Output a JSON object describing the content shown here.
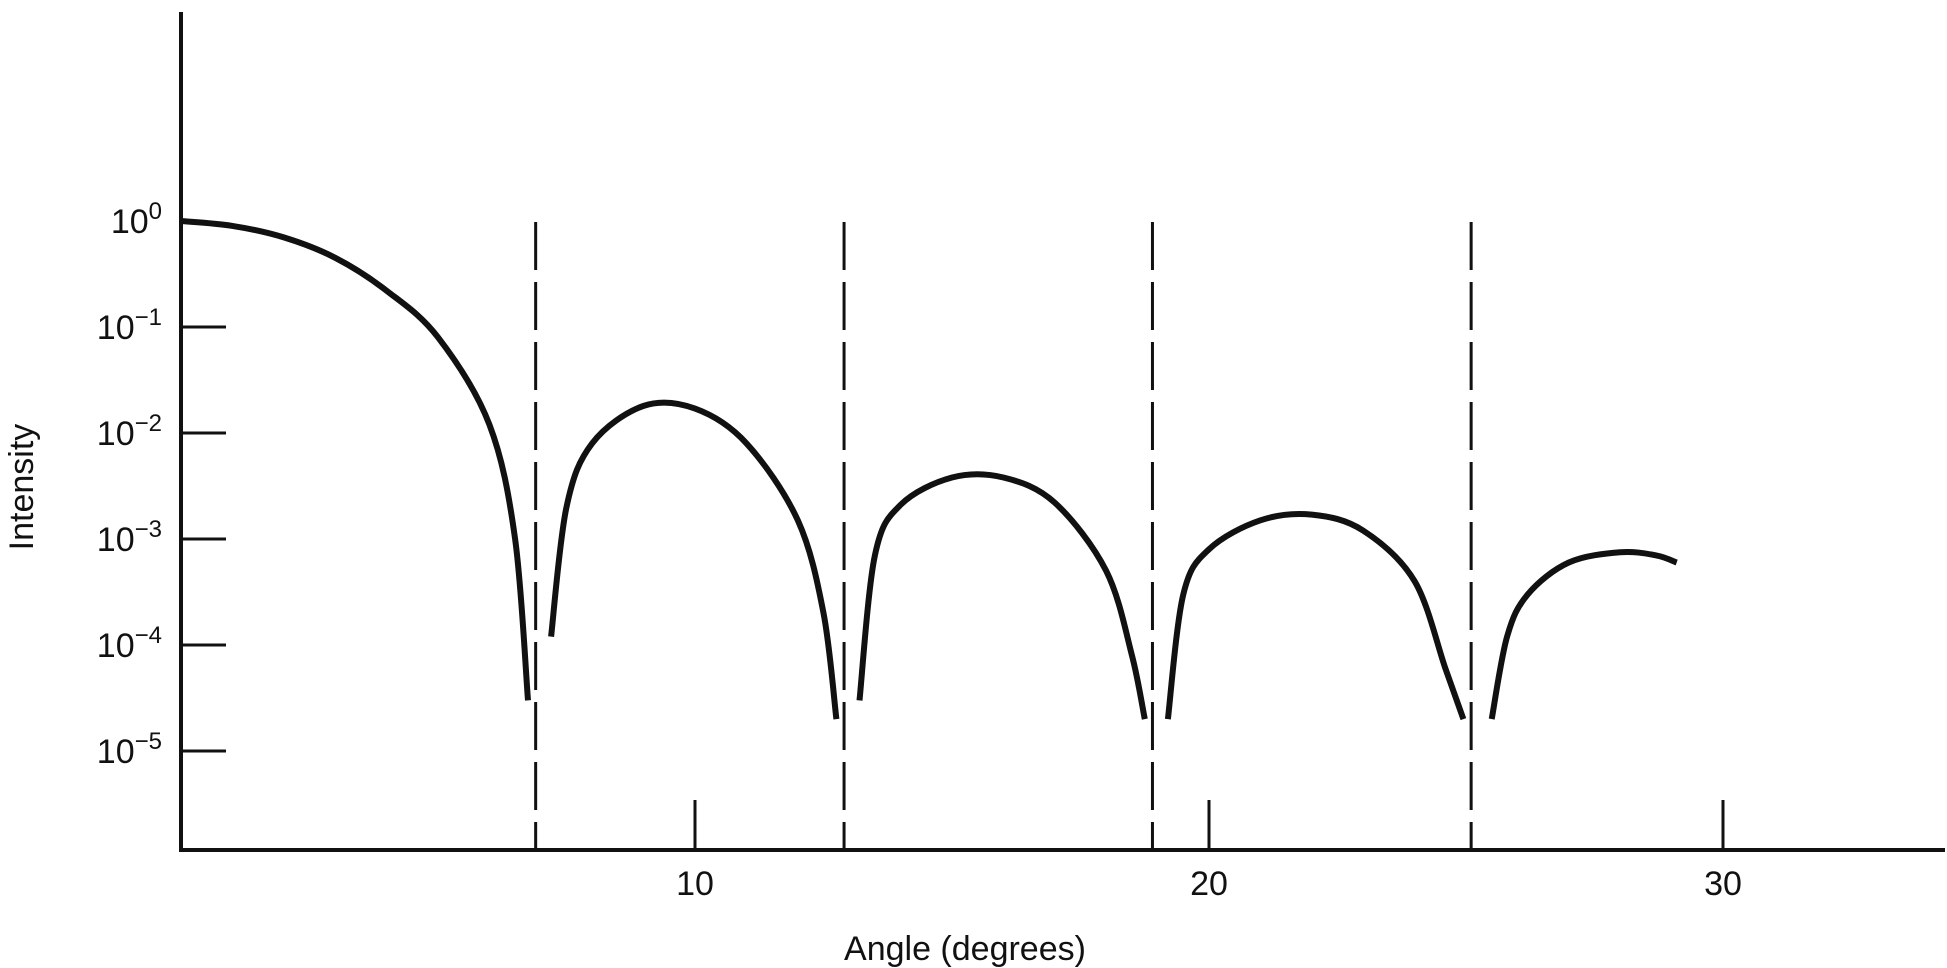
{
  "chart_data": {
    "type": "line",
    "title": "",
    "xlabel": "Angle (degrees)",
    "ylabel": "Intensity",
    "xlim": [
      0,
      34
    ],
    "ylim_exponent": [
      -6,
      1
    ],
    "yscale": "log",
    "grid": false,
    "x_ticks": [
      {
        "value": 10,
        "label": "10"
      },
      {
        "value": 20,
        "label": "20"
      },
      {
        "value": 30,
        "label": "30"
      }
    ],
    "y_ticks": [
      {
        "exp": 0,
        "base": "10",
        "sup": "0"
      },
      {
        "exp": -1,
        "base": "10",
        "sup": "−1"
      },
      {
        "exp": -2,
        "base": "10",
        "sup": "−2"
      },
      {
        "exp": -3,
        "base": "10",
        "sup": "−3"
      },
      {
        "exp": -4,
        "base": "10",
        "sup": "−4"
      },
      {
        "exp": -5,
        "base": "10",
        "sup": "−5"
      }
    ],
    "minima_dashed_lines": [
      6.9,
      12.9,
      18.9,
      25.1
    ],
    "series": [
      {
        "values": [
          [
            0,
            1.0
          ],
          [
            1,
            0.9
          ],
          [
            2,
            0.7
          ],
          [
            3,
            0.45
          ],
          [
            4,
            0.22
          ],
          [
            5,
            0.08
          ],
          [
            6,
            0.012
          ],
          [
            6.5,
            0.001
          ],
          [
            6.75,
            3e-05
          ]
        ]
      },
      {
        "values": [
          [
            7.2,
            0.00012
          ],
          [
            7.5,
            0.002
          ],
          [
            8,
            0.008
          ],
          [
            9,
            0.018
          ],
          [
            10,
            0.017
          ],
          [
            11,
            0.008
          ],
          [
            12,
            0.0015
          ],
          [
            12.5,
            0.0002
          ],
          [
            12.75,
            2e-05
          ]
        ]
      },
      {
        "values": [
          [
            13.2,
            3e-05
          ],
          [
            13.5,
            0.0007
          ],
          [
            14,
            0.0021
          ],
          [
            15,
            0.0038
          ],
          [
            16,
            0.0038
          ],
          [
            17,
            0.0022
          ],
          [
            18,
            0.0005
          ],
          [
            18.5,
            8e-05
          ],
          [
            18.75,
            2e-05
          ]
        ]
      },
      {
        "values": [
          [
            19.2,
            2e-05
          ],
          [
            19.5,
            0.0003
          ],
          [
            20,
            0.0008
          ],
          [
            21,
            0.0015
          ],
          [
            22,
            0.0017
          ],
          [
            23,
            0.0012
          ],
          [
            24,
            0.0004
          ],
          [
            24.6,
            6e-05
          ],
          [
            24.95,
            2e-05
          ]
        ]
      },
      {
        "values": [
          [
            25.5,
            2e-05
          ],
          [
            25.8,
            0.00012
          ],
          [
            26.2,
            0.0003
          ],
          [
            27,
            0.0006
          ],
          [
            28,
            0.00075
          ],
          [
            28.7,
            0.0007
          ],
          [
            29.1,
            0.0006
          ]
        ]
      }
    ]
  }
}
